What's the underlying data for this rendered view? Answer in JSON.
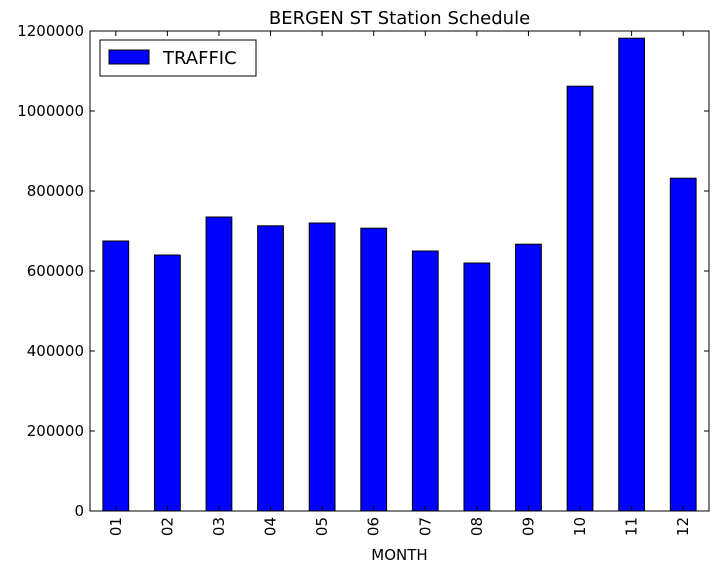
{
  "chart_data": {
    "type": "bar",
    "title": "BERGEN ST Station Schedule",
    "xlabel": "MONTH",
    "ylabel": "",
    "categories": [
      "01",
      "02",
      "03",
      "04",
      "05",
      "06",
      "07",
      "08",
      "09",
      "10",
      "11",
      "12"
    ],
    "series": [
      {
        "name": "TRAFFIC",
        "values": [
          675000,
          640000,
          735000,
          713000,
          720000,
          707000,
          650000,
          620000,
          667000,
          1062000,
          1182000,
          832000
        ]
      }
    ],
    "ylim": [
      0,
      1200000
    ],
    "yticks": [
      "0",
      "200000",
      "400000",
      "600000",
      "800000",
      "1000000",
      "1200000"
    ],
    "grid": false,
    "legend_position": "top-left",
    "bar_color": "#0000ff",
    "edge_color": "#000000"
  }
}
